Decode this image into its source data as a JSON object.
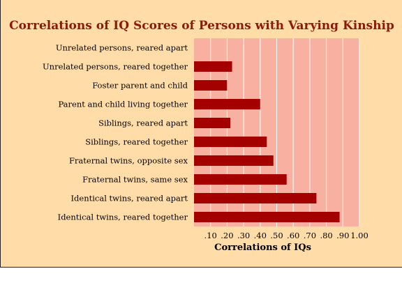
{
  "chart_data": {
    "type": "bar",
    "orientation": "horizontal",
    "title": "Correlations of IQ Scores of Persons with Varying Kinship",
    "xlabel": "Correlations of IQs",
    "ylabel": "",
    "xlim": [
      0,
      1.0
    ],
    "grid": true,
    "categories": [
      "Unrelated persons, reared apart",
      "Unrelated persons, reared together",
      "Foster parent and child",
      "Parent and child living together",
      "Siblings, reared apart",
      "Siblings, reared together",
      "Fraternal twins, opposite sex",
      "Fraternal twins, same sex",
      "Identical twins, reared apart",
      "Identical twins, reared together"
    ],
    "values": [
      0.0,
      0.23,
      0.2,
      0.4,
      0.22,
      0.44,
      0.48,
      0.56,
      0.74,
      0.88
    ],
    "x_ticks": [
      ".10",
      ".20",
      ".30",
      ".40",
      ".50",
      ".60",
      ".70",
      ".80",
      ".90",
      "1.00"
    ],
    "colors": {
      "background": "#ffdca8",
      "plot_area": "#f8b0a0",
      "bar": "#a40000",
      "grid": "#ffffff",
      "title": "#8b1a0a"
    }
  }
}
